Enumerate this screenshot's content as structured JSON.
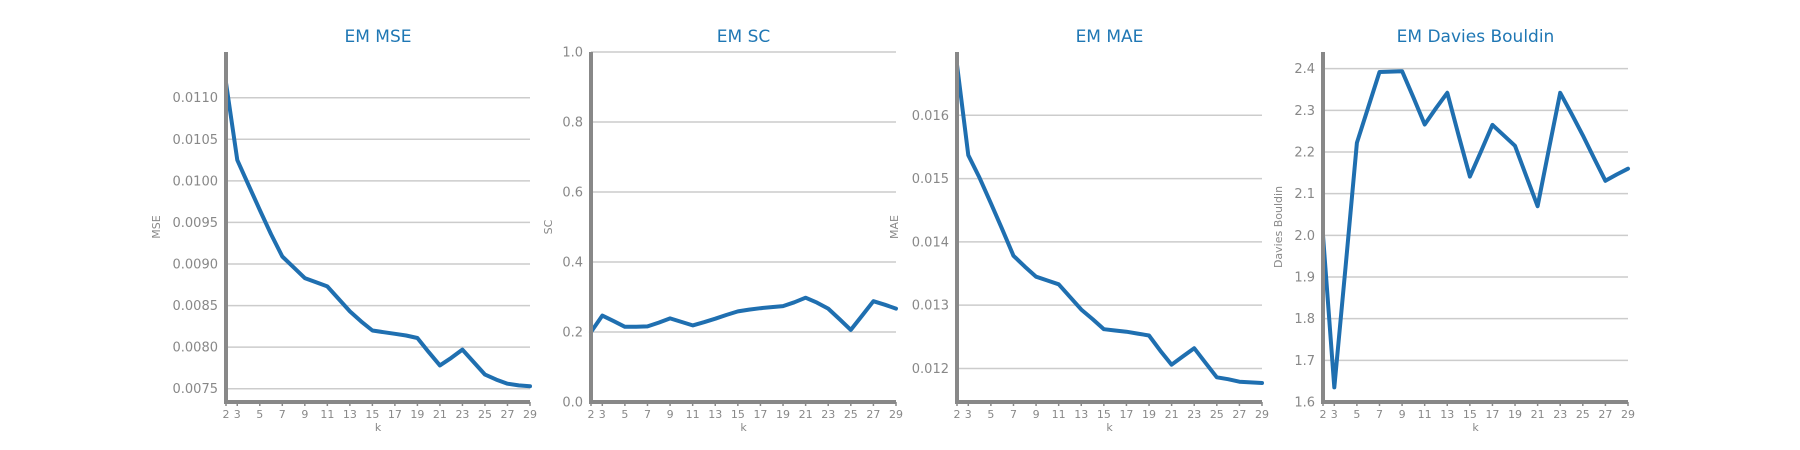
{
  "chart_data": [
    {
      "type": "line",
      "title": "EM MSE",
      "xlabel": "k",
      "ylabel": "MSE",
      "x": [
        2,
        3,
        4,
        5,
        6,
        7,
        8,
        9,
        10,
        11,
        12,
        13,
        14,
        15,
        16,
        17,
        18,
        19,
        20,
        21,
        22,
        23,
        24,
        25,
        26,
        27,
        28,
        29
      ],
      "y": [
        0.01118,
        0.01025,
        0.00995,
        0.00965,
        0.00936,
        0.00909,
        0.00896,
        0.00883,
        0.00878,
        0.00873,
        0.00858,
        0.00843,
        0.00831,
        0.0082,
        0.00818,
        0.00816,
        0.00814,
        0.00811,
        0.00794,
        0.00778,
        0.00787,
        0.00797,
        0.00782,
        0.00767,
        0.00761,
        0.00756,
        0.00754,
        0.00753
      ],
      "xlim": [
        2,
        29
      ],
      "ylim": [
        0.00734,
        0.01155
      ],
      "yticks": [
        0.0075,
        0.008,
        0.0085,
        0.009,
        0.0095,
        0.01,
        0.0105,
        0.011
      ],
      "ytick_labels": [
        "0.0075",
        "0.0080",
        "0.0085",
        "0.0090",
        "0.0095",
        "0.0100",
        "0.0105",
        "0.0110"
      ],
      "xticks": [
        2,
        3,
        5,
        7,
        9,
        11,
        13,
        15,
        17,
        19,
        21,
        23,
        25,
        27,
        29
      ],
      "grid": true
    },
    {
      "type": "line",
      "title": "EM SC",
      "xlabel": "k",
      "ylabel": "SC",
      "x": [
        2,
        3,
        4,
        5,
        6,
        7,
        8,
        9,
        10,
        11,
        12,
        13,
        14,
        15,
        16,
        17,
        18,
        19,
        20,
        21,
        22,
        23,
        24,
        25,
        26,
        27,
        28,
        29
      ],
      "y": [
        0.2,
        0.247,
        0.231,
        0.215,
        0.215,
        0.216,
        0.227,
        0.239,
        0.229,
        0.219,
        0.228,
        0.238,
        0.249,
        0.259,
        0.264,
        0.268,
        0.271,
        0.274,
        0.285,
        0.298,
        0.284,
        0.267,
        0.237,
        0.206,
        0.247,
        0.288,
        0.278,
        0.267
      ],
      "xlim": [
        2,
        29
      ],
      "ylim": [
        0,
        1.0
      ],
      "yticks": [
        0,
        0.2,
        0.4,
        0.6,
        0.8,
        1.0
      ],
      "ytick_labels": [
        "0.0",
        "0.2",
        "0.4",
        "0.6",
        "0.8",
        "1.0"
      ],
      "xticks": [
        2,
        3,
        5,
        7,
        9,
        11,
        13,
        15,
        17,
        19,
        21,
        23,
        25,
        27,
        29
      ],
      "grid": true
    },
    {
      "type": "line",
      "title": "EM MAE",
      "xlabel": "k",
      "ylabel": "MAE",
      "x": [
        2,
        3,
        4,
        5,
        6,
        7,
        8,
        9,
        10,
        11,
        12,
        13,
        14,
        15,
        16,
        17,
        18,
        19,
        20,
        21,
        22,
        23,
        24,
        25,
        26,
        27,
        28,
        29
      ],
      "y": [
        0.0168,
        0.01537,
        0.01501,
        0.01461,
        0.0142,
        0.01378,
        0.01361,
        0.01345,
        0.01339,
        0.01333,
        0.01313,
        0.01293,
        0.01278,
        0.01262,
        0.0126,
        0.01258,
        0.01255,
        0.01252,
        0.01228,
        0.01206,
        0.01219,
        0.01232,
        0.01209,
        0.01186,
        0.01183,
        0.01179,
        0.01178,
        0.01177
      ],
      "xlim": [
        2,
        29
      ],
      "ylim": [
        0.01147,
        0.017
      ],
      "yticks": [
        0.012,
        0.013,
        0.014,
        0.015,
        0.016
      ],
      "ytick_labels": [
        "0.012",
        "0.013",
        "0.014",
        "0.015",
        "0.016"
      ],
      "xticks": [
        2,
        3,
        5,
        7,
        9,
        11,
        13,
        15,
        17,
        19,
        21,
        23,
        25,
        27,
        29
      ],
      "grid": true
    },
    {
      "type": "line",
      "title": "EM Davies Bouldin",
      "xlabel": "k",
      "ylabel": "Davies Bouldin",
      "x": [
        2,
        3,
        4,
        5,
        6,
        7,
        8,
        9,
        10,
        11,
        12,
        13,
        14,
        15,
        16,
        17,
        18,
        19,
        20,
        21,
        22,
        23,
        24,
        25,
        26,
        27,
        28,
        29
      ],
      "y": [
        2.0,
        1.635,
        1.925,
        2.222,
        2.307,
        2.392,
        2.393,
        2.394,
        2.331,
        2.266,
        2.305,
        2.342,
        2.24,
        2.141,
        2.202,
        2.265,
        2.24,
        2.215,
        2.142,
        2.07,
        2.207,
        2.342,
        2.292,
        2.24,
        2.185,
        2.131,
        2.146,
        2.16
      ],
      "xlim": [
        2,
        29
      ],
      "ylim": [
        1.6,
        2.44
      ],
      "yticks": [
        1.6,
        1.7,
        1.8,
        1.9,
        2.0,
        2.1,
        2.2,
        2.3,
        2.4
      ],
      "ytick_labels": [
        "1.6",
        "1.7",
        "1.8",
        "1.9",
        "2.0",
        "2.1",
        "2.2",
        "2.3",
        "2.4"
      ],
      "xticks": [
        2,
        3,
        5,
        7,
        9,
        11,
        13,
        15,
        17,
        19,
        21,
        23,
        25,
        27,
        29
      ],
      "grid": true
    }
  ],
  "colors": {
    "series": "#1f6fb0",
    "title": "#1f77b4",
    "axis": "#888888",
    "grid": "#cccccc"
  }
}
